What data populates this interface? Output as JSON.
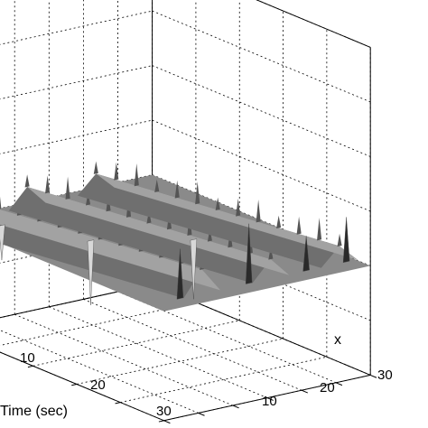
{
  "chart_data": {
    "type": "surface",
    "grid": true,
    "colormap": "gray",
    "xlabel": "x",
    "ylabel": "Time (sec)",
    "zlabel": "",
    "x_ticks": [
      "10",
      "20",
      "30"
    ],
    "time_ticks": [
      "10",
      "20",
      "30"
    ],
    "xlim": [
      0,
      36
    ],
    "time_lim": [
      0,
      32
    ],
    "ridges": [
      {
        "time_start": 1,
        "time_end": 30,
        "x_at_start": 1,
        "x_at_end": 9,
        "height": 0.25
      },
      {
        "time_start": 1,
        "time_end": 30,
        "x_at_start": 13,
        "x_at_end": 21,
        "height": 0.2
      },
      {
        "time_start": 1,
        "time_end": 30,
        "x_at_start": 25,
        "x_at_end": 33,
        "height": 0.18
      }
    ],
    "spikes": [
      {
        "x": 0,
        "time": 1,
        "value": -3.2
      },
      {
        "x": 4,
        "time": 31,
        "value": 1.1
      },
      {
        "x": 16,
        "time": 31,
        "value": 1.3
      },
      {
        "x": 26,
        "time": 31,
        "value": 0.8
      },
      {
        "x": 33,
        "time": 31,
        "value": 1.0
      },
      {
        "x": 11,
        "time": 12,
        "value": -1.3
      },
      {
        "x": 23,
        "time": 17,
        "value": -1.2
      },
      {
        "x": 5,
        "time": 4,
        "value": -0.7
      }
    ]
  }
}
